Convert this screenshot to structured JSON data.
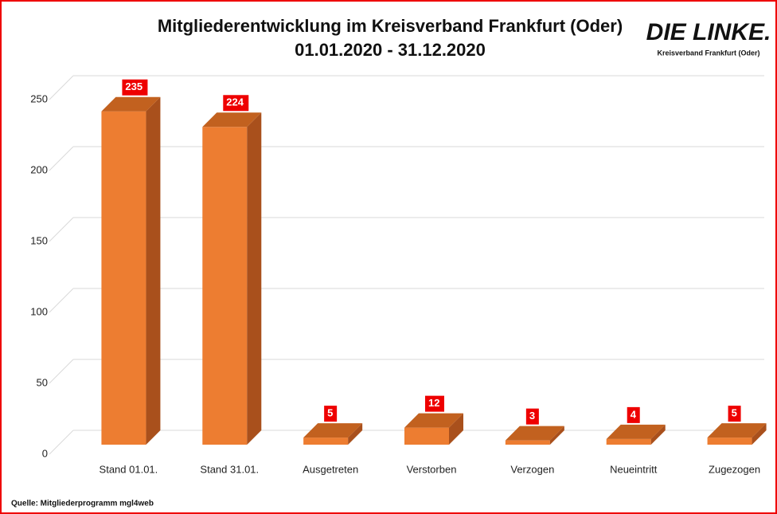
{
  "chart_data": {
    "type": "bar3d",
    "title": "Mitgliederentwicklung im Kreisverband Frankfurt (Oder)",
    "subtitle": "01.01.2020 - 31.12.2020",
    "logo": "DIE LINKE.",
    "logo_subtitle": "Kreisverband Frankfurt (Oder)",
    "source": "Quelle: Mitgliederprogramm mgl4web",
    "categories": [
      "Stand 01.01.",
      "Stand 31.01.",
      "Ausgetreten",
      "Verstorben",
      "Verzogen",
      "Neueintritt",
      "Zugezogen"
    ],
    "values": [
      235,
      224,
      5,
      12,
      3,
      4,
      5
    ],
    "color": "#ed7d31",
    "ylim": [
      0,
      250
    ],
    "yticks": [
      0,
      50,
      100,
      150,
      200,
      250
    ],
    "grid": true
  }
}
